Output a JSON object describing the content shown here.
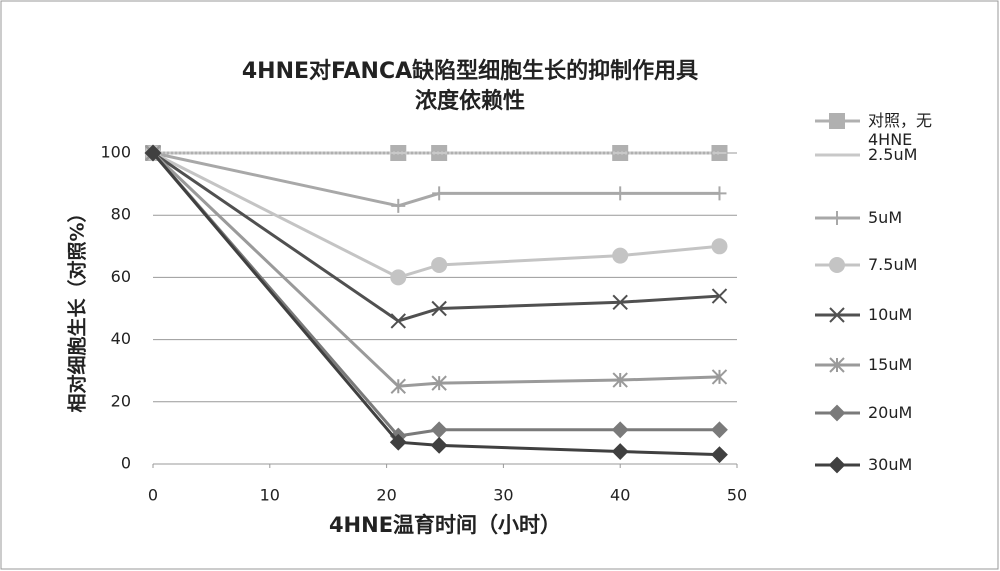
{
  "chart_data": {
    "type": "line",
    "title": [
      "4HNE对FANCA缺陷型细胞生长的抑制作用具",
      "浓度依赖性"
    ],
    "x_label": "4HNE温育时间（小时）",
    "y_label": "相对细胞生长（对照%）",
    "x": [
      0,
      21,
      24.5,
      40,
      48.5
    ],
    "xlim": [
      0,
      50
    ],
    "xticks": [
      0,
      10,
      20,
      30,
      40,
      50
    ],
    "ylim": [
      0,
      100
    ],
    "yticks": [
      0,
      20,
      40,
      60,
      80,
      100
    ],
    "grid": true,
    "legend": "right",
    "series": [
      {
        "name": "对照，无4HNE",
        "color": "#b0b0b0",
        "marker": "square",
        "values": [
          100,
          100,
          100,
          100,
          100
        ]
      },
      {
        "name": "2.5uM",
        "color": "#c8c8c8",
        "marker": "dash",
        "values": [
          100,
          100,
          100,
          100,
          100
        ]
      },
      {
        "name": "5uM",
        "color": "#a8a8a8",
        "marker": "plus",
        "values": [
          100,
          83,
          87,
          87,
          87
        ]
      },
      {
        "name": "7.5uM",
        "color": "#c4c4c4",
        "marker": "circle",
        "values": [
          100,
          60,
          64,
          67,
          70
        ]
      },
      {
        "name": "10uM",
        "color": "#505050",
        "marker": "x",
        "values": [
          100,
          46,
          50,
          52,
          54
        ]
      },
      {
        "name": "15uM",
        "color": "#9a9a9a",
        "marker": "star",
        "values": [
          100,
          25,
          26,
          27,
          28
        ]
      },
      {
        "name": "20uM",
        "color": "#7a7a7a",
        "marker": "diamond",
        "values": [
          100,
          9,
          11,
          11,
          11
        ]
      },
      {
        "name": "30uM",
        "color": "#404040",
        "marker": "diamond",
        "values": [
          100,
          7,
          6,
          4,
          3
        ]
      }
    ]
  }
}
